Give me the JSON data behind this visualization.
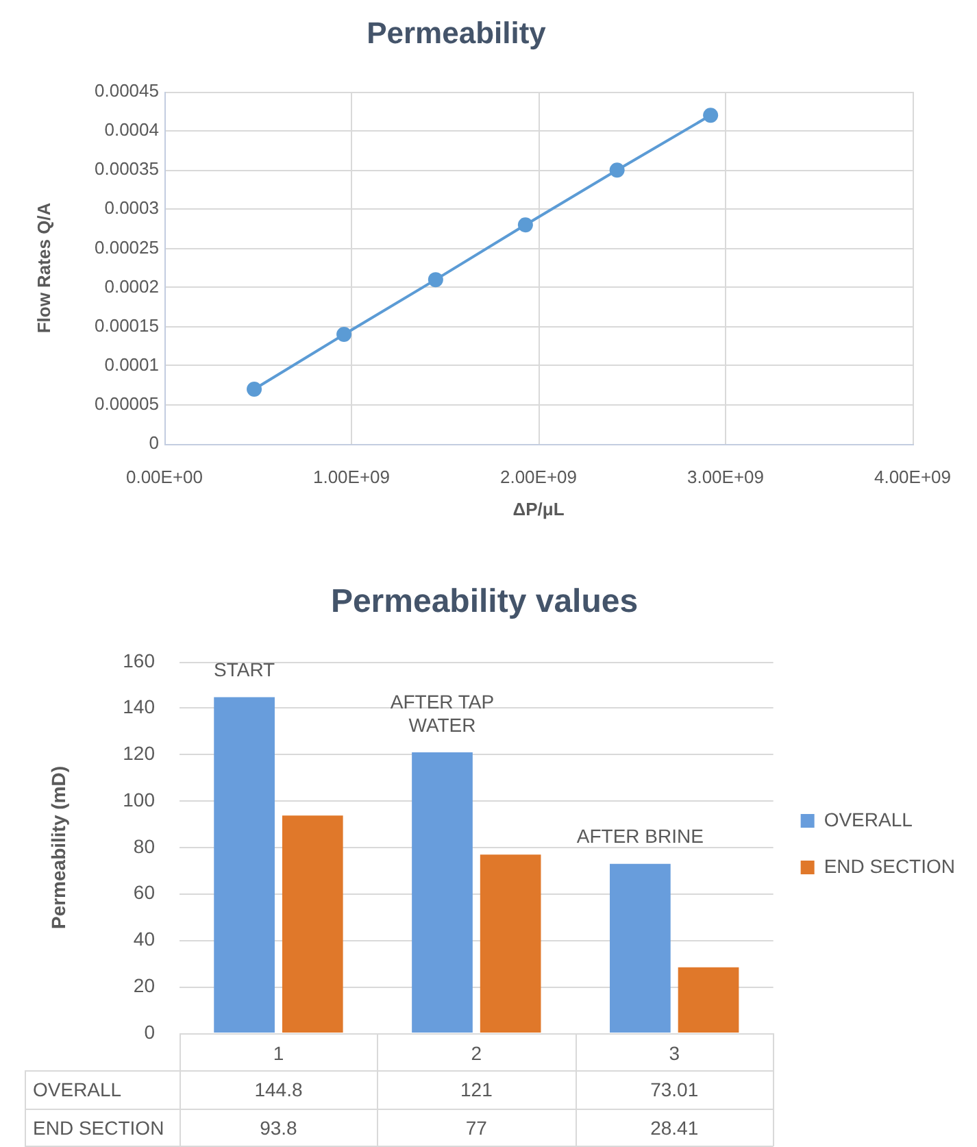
{
  "chart_data": [
    {
      "type": "line",
      "title": "Permeability",
      "xlabel": "ΔP/μL",
      "ylabel": "Flow Rates Q/A",
      "x": [
        480000000,
        960000000,
        1450000000,
        1930000000,
        2420000000,
        2920000000
      ],
      "series": [
        {
          "color": "#5b9bd5",
          "values": [
            7e-05,
            0.00014,
            0.00021,
            0.00028,
            0.00035,
            0.00042
          ]
        }
      ],
      "xlim": [
        0,
        4000000000
      ],
      "xticks": [
        {
          "value": 0,
          "label": "0.00E+00"
        },
        {
          "value": 1000000000,
          "label": "1.00E+09"
        },
        {
          "value": 2000000000,
          "label": "2.00E+09"
        },
        {
          "value": 3000000000,
          "label": "3.00E+09"
        },
        {
          "value": 4000000000,
          "label": "4.00E+09"
        }
      ],
      "ylim": [
        0,
        0.00045
      ],
      "yticks": [
        0,
        {
          "value": 5e-05,
          "label": "0.00005"
        },
        0.0001,
        0.00015,
        0.0002,
        0.00025,
        0.0003,
        0.00035,
        0.0004,
        0.00045
      ],
      "grid": true,
      "marker": "circle",
      "line_style": "solid"
    },
    {
      "type": "bar",
      "title": "Permeability values",
      "ylabel": "Permeability (mD)",
      "categories": [
        "1",
        "2",
        "3"
      ],
      "series": [
        {
          "name": "OVERALL",
          "color": "#689ddc",
          "values": [
            144.8,
            121,
            73.01
          ]
        },
        {
          "name": "END SECTION",
          "color": "#e0782a",
          "values": [
            93.8,
            77,
            28.41
          ]
        }
      ],
      "ylim": [
        0,
        160
      ],
      "yticks": [
        0,
        20,
        40,
        60,
        80,
        100,
        120,
        140,
        160
      ],
      "grid": "y",
      "legend": "right",
      "data_labels": true,
      "annotations": [
        "START",
        "AFTER TAP WATER",
        "AFTER BRINE"
      ]
    }
  ]
}
